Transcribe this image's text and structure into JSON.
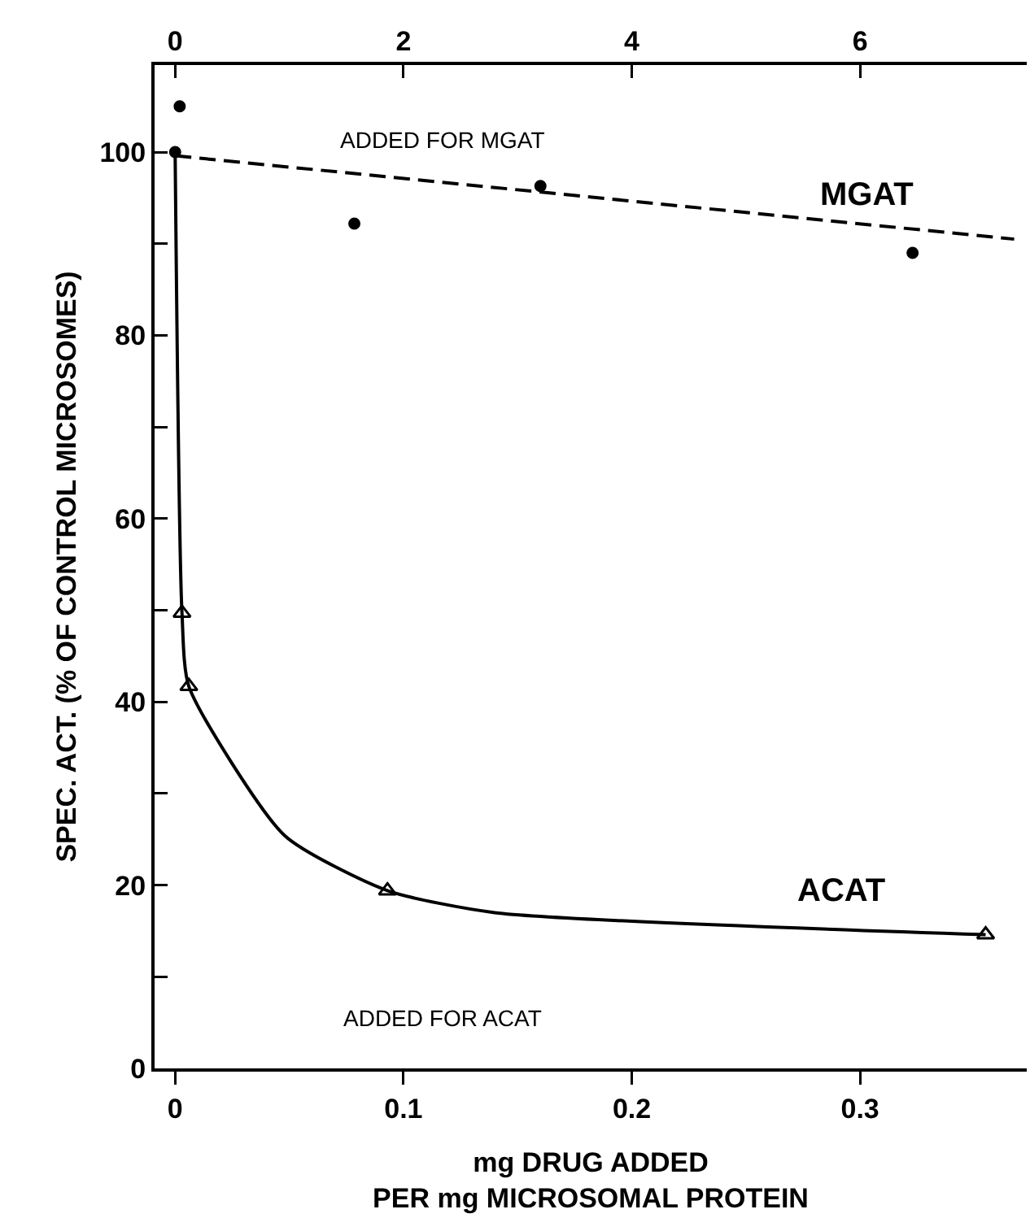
{
  "chart_data": {
    "type": "line",
    "xlabel": "mg DRUG ADDED\nPER mg MICROSOMAL PROTEIN",
    "ylabel": "SPEC. ACT. (% OF CONTROL MICROSOMES)",
    "annotations": [
      "ADDED FOR MGAT",
      "ADDED FOR ACAT"
    ],
    "series": [
      {
        "type": "scatter",
        "color": "#000000",
        "marker": "circle",
        "x": [
          0
        ],
        "values": [
          100
        ]
      },
      {
        "type": "scatter",
        "axis": "x2",
        "color": "#000000",
        "marker": "circle",
        "x": [
          0.04,
          1.57,
          3.2,
          6.46
        ],
        "values": [
          105,
          92.2,
          96.3,
          89
        ]
      },
      {
        "type": "line",
        "axis": "x2",
        "name": "MGAT",
        "color": "#000000",
        "marker": "none",
        "line_style": "dashed",
        "x": [
          0,
          7.35
        ],
        "values": [
          99.6,
          90.5
        ]
      },
      {
        "type": "line",
        "color": "#000000",
        "line_style": "solid",
        "x": [
          0,
          0.003,
          0.006,
          0.048,
          0.093,
          0.14,
          0.355
        ],
        "values": [
          100,
          49.7,
          41.7,
          25.4,
          19.4,
          17.0,
          14.6
        ]
      },
      {
        "type": "scatter",
        "name": "ACAT",
        "color": "#000000",
        "marker": "triangle",
        "x": [
          0.003,
          0.006,
          0.093,
          0.355
        ],
        "values": [
          49.7,
          41.7,
          19.4,
          14.6
        ]
      }
    ],
    "xlim": [
      -0.009,
      0.373
    ],
    "xticks": [
      0,
      0.1,
      0.2,
      0.3
    ],
    "x2lim": [
      -0.18,
      7.46
    ],
    "x2ticks": [
      0,
      2,
      4,
      6
    ],
    "ylim": [
      0,
      109.5
    ],
    "yticks": [
      0,
      {
        "value": 10,
        "label": null
      },
      20,
      {
        "value": 30,
        "label": null
      },
      40,
      {
        "value": 50,
        "label": null
      },
      60,
      {
        "value": 70,
        "label": null
      },
      80,
      {
        "value": 90,
        "label": null
      },
      100
    ],
    "grid": false
  }
}
